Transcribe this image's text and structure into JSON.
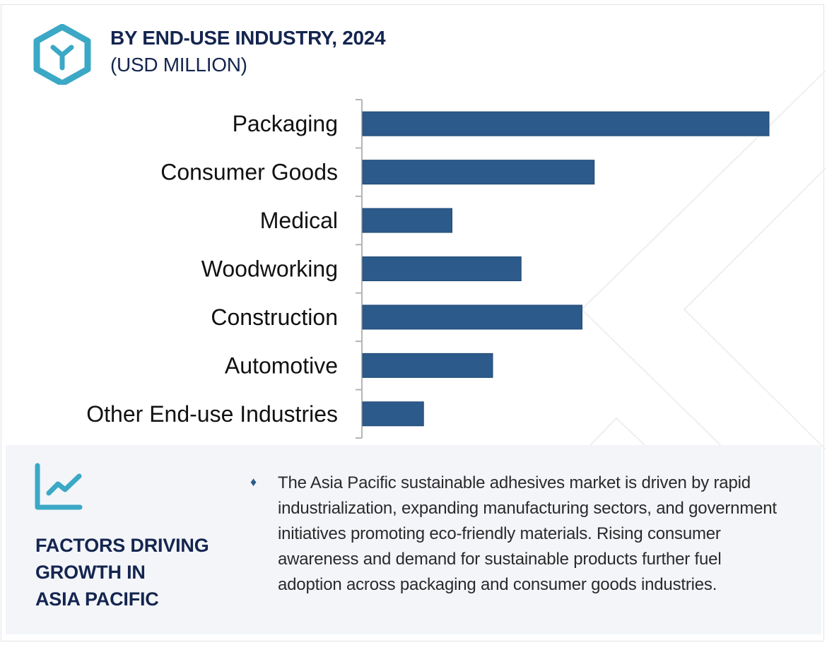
{
  "header": {
    "title": "BY END-USE INDUSTRY, 2024",
    "subtitle": "(USD MILLION)",
    "icon": "hexagon-y-logo-icon"
  },
  "colors": {
    "bar": "#2c5a8a",
    "title": "#14254f",
    "accent": "#3ba8c6",
    "panel_bg": "#f3f5f9"
  },
  "chart_data": {
    "type": "bar",
    "orientation": "horizontal",
    "title": "BY END-USE INDUSTRY, 2024",
    "subtitle": "(USD MILLION)",
    "xlabel": "",
    "ylabel": "",
    "categories": [
      "Packaging",
      "Consumer Goods",
      "Medical",
      "Woodworking",
      "Construction",
      "Automotive",
      "Other End-use Industries"
    ],
    "values": [
      100,
      57,
      22,
      39,
      54,
      32,
      15
    ],
    "value_units": "relative (no axis values shown)",
    "xlim": [
      0,
      100
    ],
    "grid": false,
    "legend": "none"
  },
  "panel": {
    "icon": "trend-chart-icon",
    "heading_lines": [
      "FACTORS DRIVING",
      "GROWTH IN",
      "ASIA PACIFIC"
    ],
    "bullet_icon": "diamond-bullet-icon",
    "bullet_glyph": "♦",
    "description": "The Asia Pacific sustainable adhesives market is driven by rapid industrialization, expanding manufacturing sectors, and government initiatives promoting eco-friendly materials. Rising consumer awareness and demand for sustainable products further fuel adoption across packaging and consumer goods industries."
  }
}
